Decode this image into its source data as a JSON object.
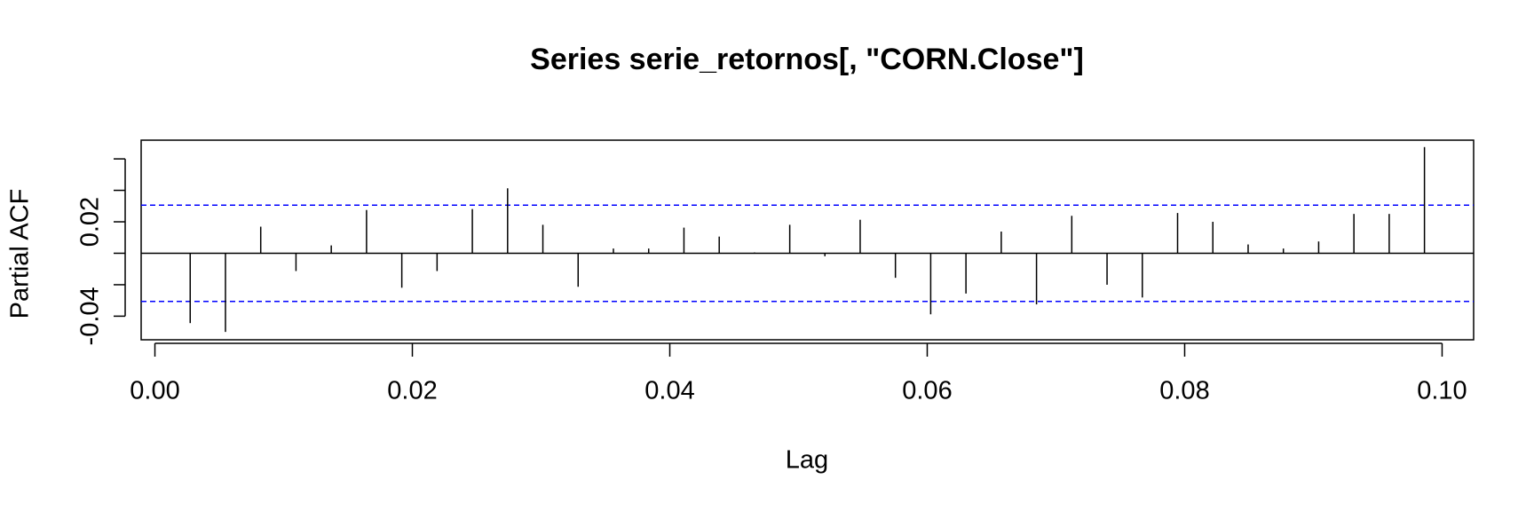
{
  "chart_data": {
    "type": "pacf",
    "title": "Series  serie_retornos[, \"CORN.Close\"]",
    "xlabel": "Lag",
    "ylabel": "Partial ACF",
    "x": [
      0.00274,
      0.00548,
      0.00822,
      0.01096,
      0.0137,
      0.01644,
      0.01918,
      0.02192,
      0.02466,
      0.0274,
      0.03014,
      0.03288,
      0.03562,
      0.03836,
      0.0411,
      0.04384,
      0.04658,
      0.04932,
      0.05205,
      0.05479,
      0.05753,
      0.06027,
      0.06301,
      0.06575,
      0.06849,
      0.07123,
      0.07397,
      0.07671,
      0.07945,
      0.08219,
      0.08493,
      0.08767,
      0.09041,
      0.09315,
      0.09589,
      0.09863
    ],
    "values": [
      -0.0444,
      -0.05,
      0.0169,
      -0.0113,
      0.005,
      0.0275,
      -0.0219,
      -0.0113,
      0.0281,
      0.0413,
      0.0181,
      -0.0213,
      0.003,
      0.003,
      0.0163,
      0.0106,
      0.0005,
      0.0181,
      -0.0019,
      0.0213,
      -0.0156,
      -0.0388,
      -0.0256,
      0.0138,
      -0.0325,
      0.0238,
      -0.02,
      -0.0281,
      0.0256,
      0.02,
      0.0056,
      0.003,
      0.0075,
      0.025,
      0.025,
      0.0675
    ],
    "color": "#000000",
    "conf_limits": [
      0.0306,
      -0.0306
    ],
    "conf_color": "#0000ff",
    "xlim": [
      -0.00107,
      0.10245
    ],
    "xticks": [
      {
        "value": 0,
        "label": "0.00"
      },
      0.02,
      0.04,
      0.06,
      0.08,
      {
        "value": 0.1,
        "label": "0.10"
      }
    ],
    "ylim": [
      -0.055,
      0.0719
    ],
    "yticks": [
      {
        "value": -0.04,
        "label": "-0.04"
      },
      {
        "value": -0.02,
        "label": null
      },
      {
        "value": 0,
        "label": null
      },
      {
        "value": 0.02,
        "label": "0.02"
      },
      {
        "value": 0.04,
        "label": null
      },
      {
        "value": 0.06,
        "label": null
      }
    ]
  }
}
